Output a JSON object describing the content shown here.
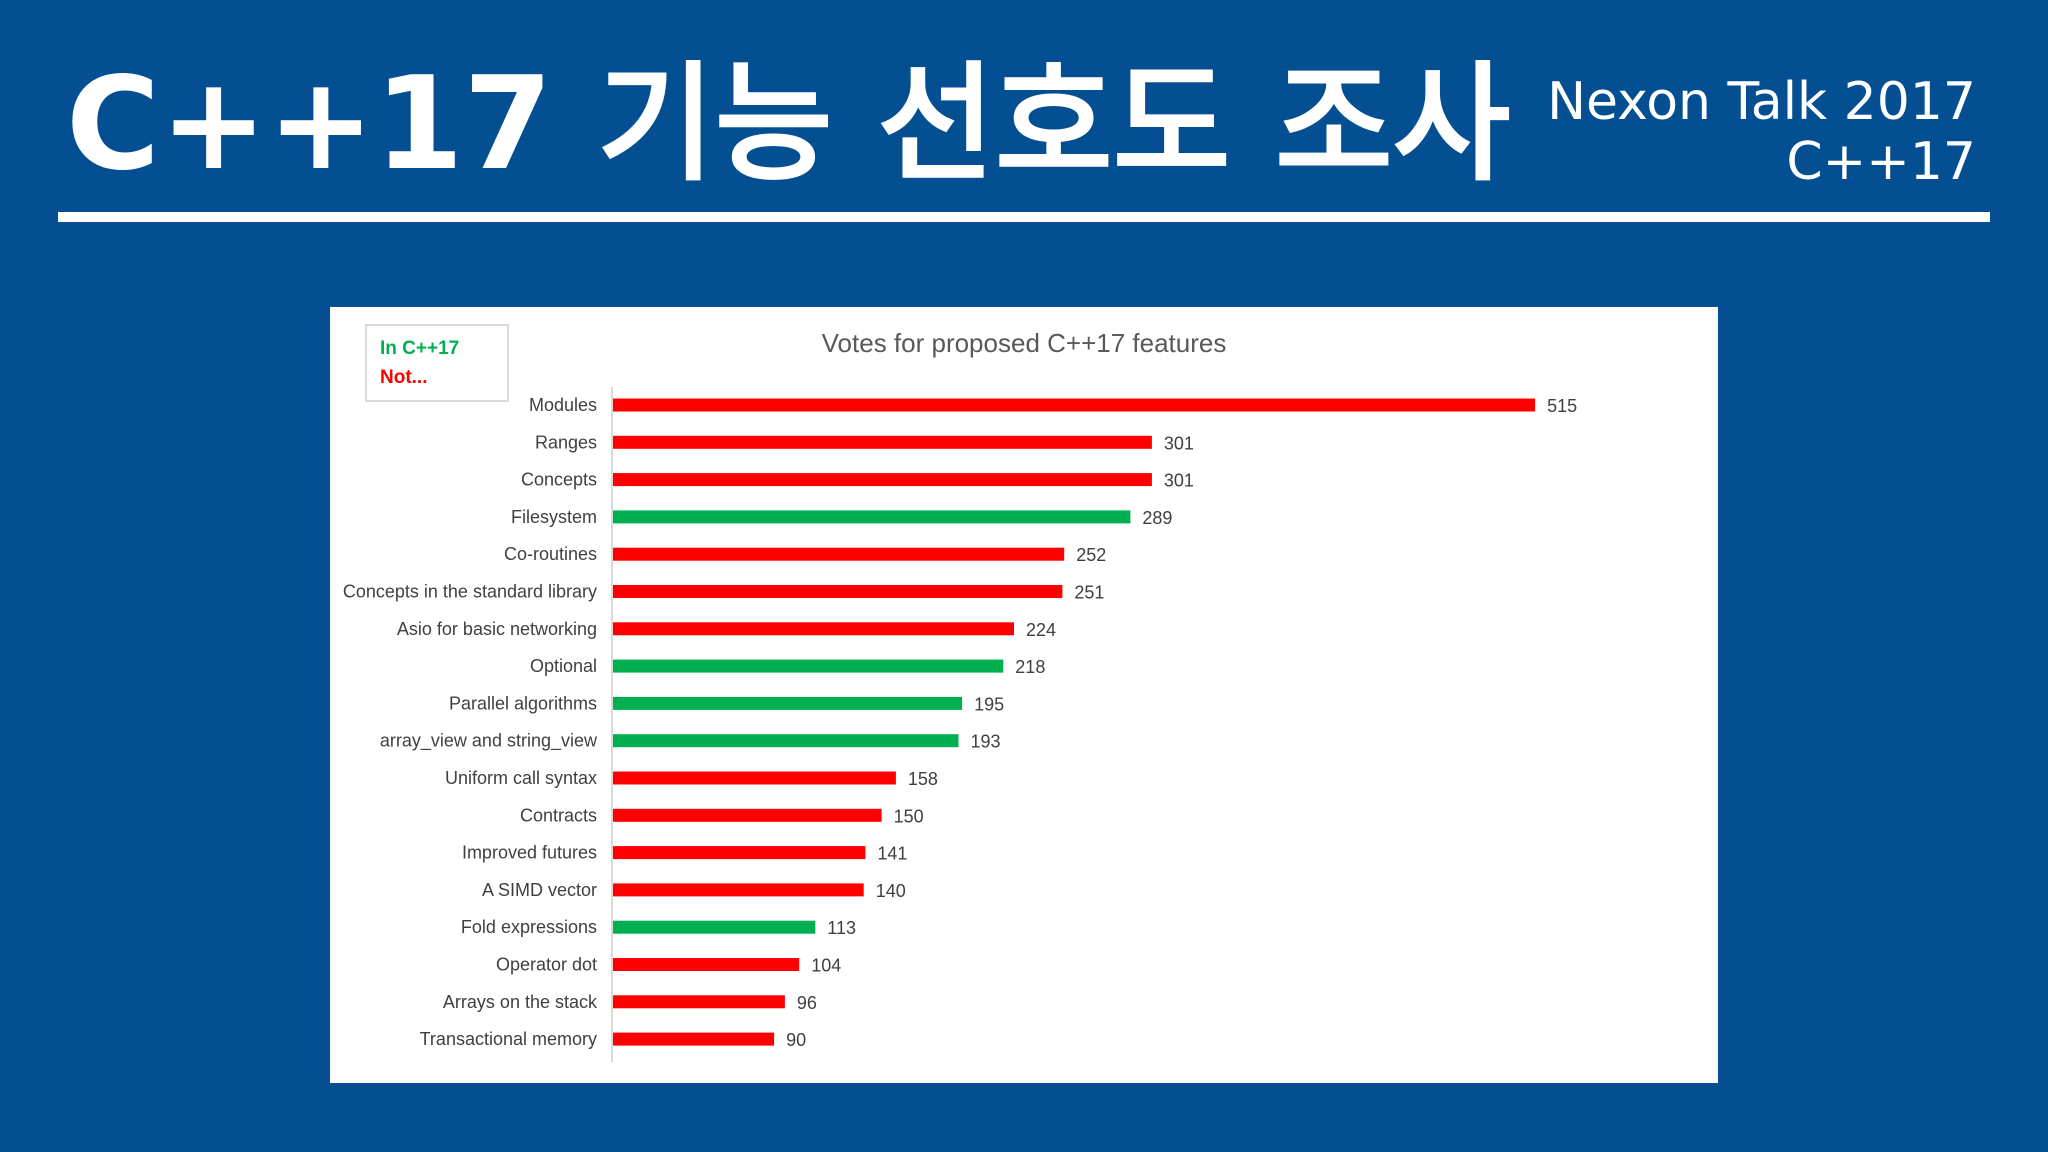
{
  "slide": {
    "title": "C++17 기능 선호도 조사",
    "subtitle_line1": "Nexon Talk 2017",
    "subtitle_line2": "C++17"
  },
  "colors": {
    "background": "#034f91",
    "in_cpp17": "#00b050",
    "not_in_cpp17": "#ff0000"
  },
  "legend": {
    "in_label": "In C++17",
    "not_label": "Not..."
  },
  "chart_data": {
    "type": "bar",
    "orientation": "horizontal",
    "title": "Votes for proposed C++17 features",
    "xlabel": "",
    "ylabel": "",
    "xlim": [
      0,
      600
    ],
    "grid": false,
    "legend_position": "top-left",
    "categories": [
      "Modules",
      "Ranges",
      "Concepts",
      "Filesystem",
      "Co-routines",
      "Concepts in the standard library",
      "Asio for basic networking",
      "Optional",
      "Parallel algorithms",
      "array_view and string_view",
      "Uniform call syntax",
      "Contracts",
      "Improved futures",
      "A SIMD vector",
      "Fold expressions",
      "Operator dot",
      "Arrays on the stack",
      "Transactional memory"
    ],
    "values": [
      515,
      301,
      301,
      289,
      252,
      251,
      224,
      218,
      195,
      193,
      158,
      150,
      141,
      140,
      113,
      104,
      96,
      90
    ],
    "in_cpp17": [
      false,
      false,
      false,
      true,
      false,
      false,
      false,
      true,
      true,
      true,
      false,
      false,
      false,
      false,
      true,
      false,
      false,
      false
    ]
  }
}
